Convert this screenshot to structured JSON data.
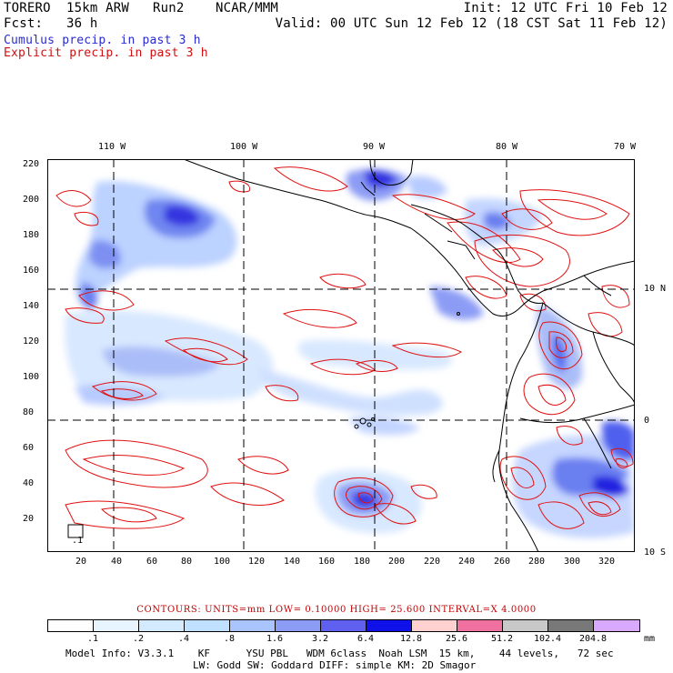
{
  "header": {
    "title_left": "TORERO  15km ARW   Run2    NCAR/MMM",
    "init": "Init: 12 UTC Fri 10 Feb 12",
    "fcst": "Fcst:   36 h",
    "valid": "Valid: 00 UTC Sun 12 Feb 12 (18 CST Sat 11 Feb 12)",
    "legend_cumulus": "Cumulus precip. in past 3 h",
    "legend_explicit": "Explicit precip. in past 3 h"
  },
  "map": {
    "top_lon_labels": [
      "110 W",
      "100 W",
      "90 W",
      "80 W",
      "70 W"
    ],
    "right_lat_labels": [
      "10 N",
      "0",
      "10 S"
    ],
    "y_ticks": [
      "220",
      "200",
      "180",
      "160",
      "140",
      "120",
      "100",
      "80",
      "60",
      "40",
      "20"
    ],
    "x_ticks": [
      "20",
      "40",
      "60",
      "80",
      "100",
      "120",
      "140",
      "160",
      "180",
      "200",
      "220",
      "240",
      "260",
      "280",
      "300",
      "320"
    ],
    "small_label": ".1"
  },
  "contours_line": "CONTOURS:  UNITS=mm  LOW= 0.10000       HIGH=  25.600      INTERVAL=X  4.0000",
  "colorbar": {
    "labels": [
      ".1",
      ".2",
      ".4",
      ".8",
      "1.6",
      "3.2",
      "6.4",
      "12.8",
      "25.6",
      "51.2",
      "102.4",
      "204.8"
    ],
    "colors": [
      "#ffffff",
      "#e8f4ff",
      "#d4eaff",
      "#bfe0ff",
      "#aac4ff",
      "#8c9cf5",
      "#6060f0",
      "#1010e8",
      "#ffd0d0",
      "#f070a0",
      "#c8c8c8",
      "#787878",
      "#d9a8ff"
    ],
    "unit": "mm"
  },
  "model_info": {
    "line1": "Model Info: V3.3.1    KF      YSU PBL   WDM 6class  Noah LSM  15 km,    44 levels,   72 sec",
    "line2": "LW: Godd SW: Goddard DIFF: simple KM: 2D Smagor"
  }
}
